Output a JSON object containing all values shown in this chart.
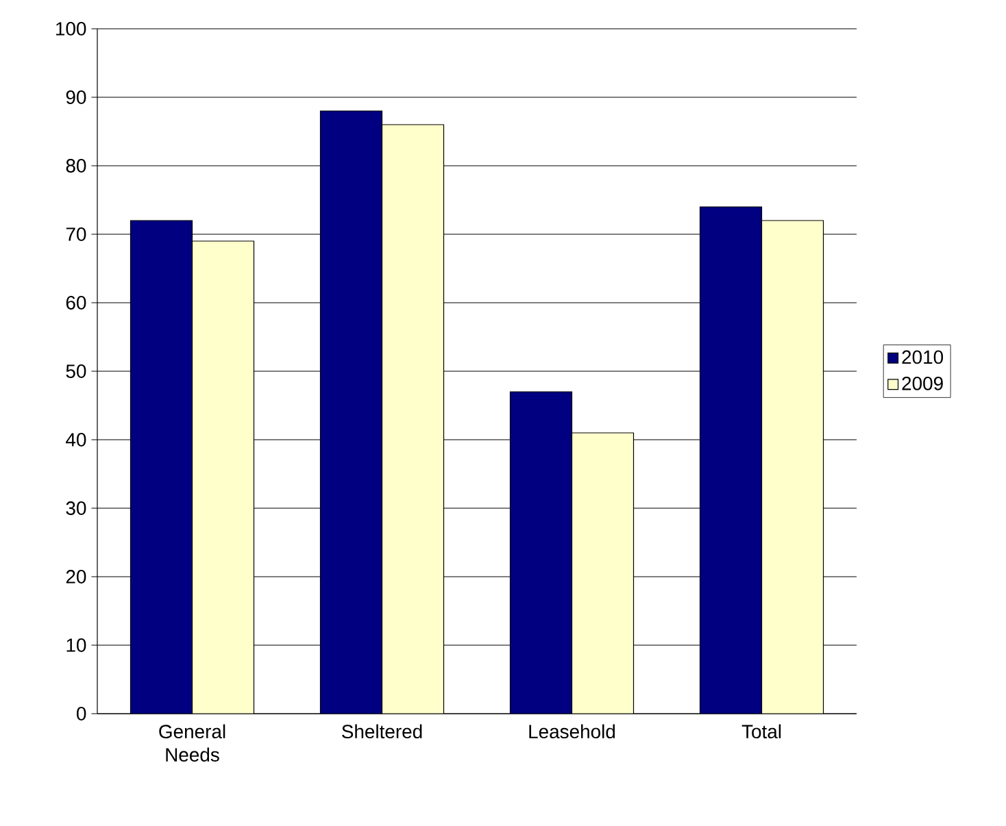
{
  "chart_data": {
    "type": "bar",
    "categories": [
      "General Needs",
      "Sheltered",
      "Leasehold",
      "Total"
    ],
    "series": [
      {
        "name": "2010",
        "color": "#000080",
        "values": [
          72,
          88,
          47,
          74
        ]
      },
      {
        "name": "2009",
        "color": "#ffffcc",
        "values": [
          69,
          86,
          41,
          72
        ]
      }
    ],
    "ylim": [
      0,
      100
    ],
    "yticks": [
      0,
      10,
      20,
      30,
      40,
      50,
      60,
      70,
      80,
      90,
      100
    ],
    "grid": "y",
    "legend": "right"
  }
}
